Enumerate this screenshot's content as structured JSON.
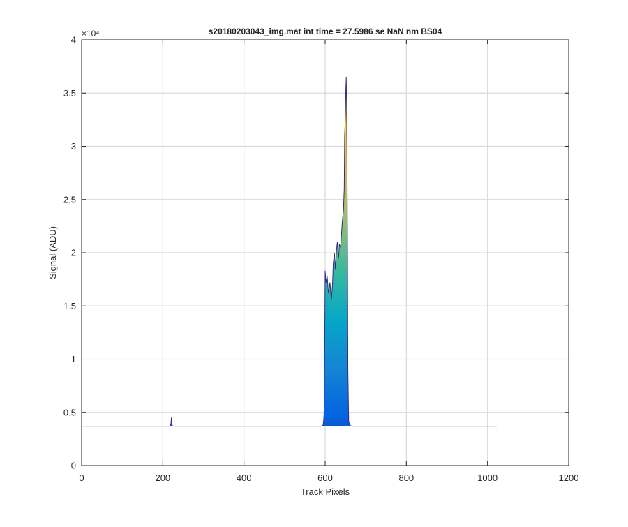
{
  "chart_data": {
    "type": "area",
    "title": "s20180203043_img.mat int time = 27.5986 se  NaN nm BS04",
    "xlabel": "Track Pixels",
    "ylabel": "Signal (ADU)",
    "xlim": [
      0,
      1200
    ],
    "ylim": [
      0,
      40000
    ],
    "xticks": [
      0,
      200,
      400,
      600,
      800,
      1000,
      1200
    ],
    "yticks": [
      0,
      5000,
      10000,
      15000,
      20000,
      25000,
      30000,
      35000,
      40000
    ],
    "xtick_labels": [
      "0",
      "200",
      "400",
      "600",
      "800",
      "1000",
      "1200"
    ],
    "ytick_labels": [
      "0",
      "0.5",
      "1",
      "1.5",
      "2",
      "2.5",
      "3",
      "3.5",
      "4"
    ],
    "y_exponent_label": "×10⁴",
    "grid": true,
    "colormap": [
      "#352a87",
      "#0363e1",
      "#1485d4",
      "#06a7c6",
      "#38b99e",
      "#92bf73",
      "#d9ba56",
      "#fcce2e",
      "#f9fb0e"
    ],
    "baseline": 3700,
    "x": [
      0,
      218,
      220,
      221,
      222,
      223,
      224,
      226,
      228,
      590,
      595,
      597,
      598,
      600,
      602,
      605,
      608,
      612,
      615,
      618,
      620,
      623,
      625,
      628,
      630,
      633,
      635,
      638,
      640,
      642,
      645,
      647,
      648,
      650,
      651,
      652,
      653,
      654,
      655,
      656,
      658,
      660,
      665,
      1023
    ],
    "y": [
      3700,
      3700,
      3900,
      4500,
      4200,
      3800,
      3720,
      3700,
      3700,
      3700,
      3800,
      4600,
      6000,
      18300,
      17200,
      17800,
      16200,
      17200,
      15500,
      16900,
      19000,
      20000,
      18400,
      20300,
      21000,
      19500,
      20800,
      20500,
      21600,
      22800,
      24000,
      26000,
      31000,
      33000,
      35500,
      36500,
      33500,
      28000,
      20000,
      9000,
      4200,
      3800,
      3700,
      3700
    ]
  }
}
